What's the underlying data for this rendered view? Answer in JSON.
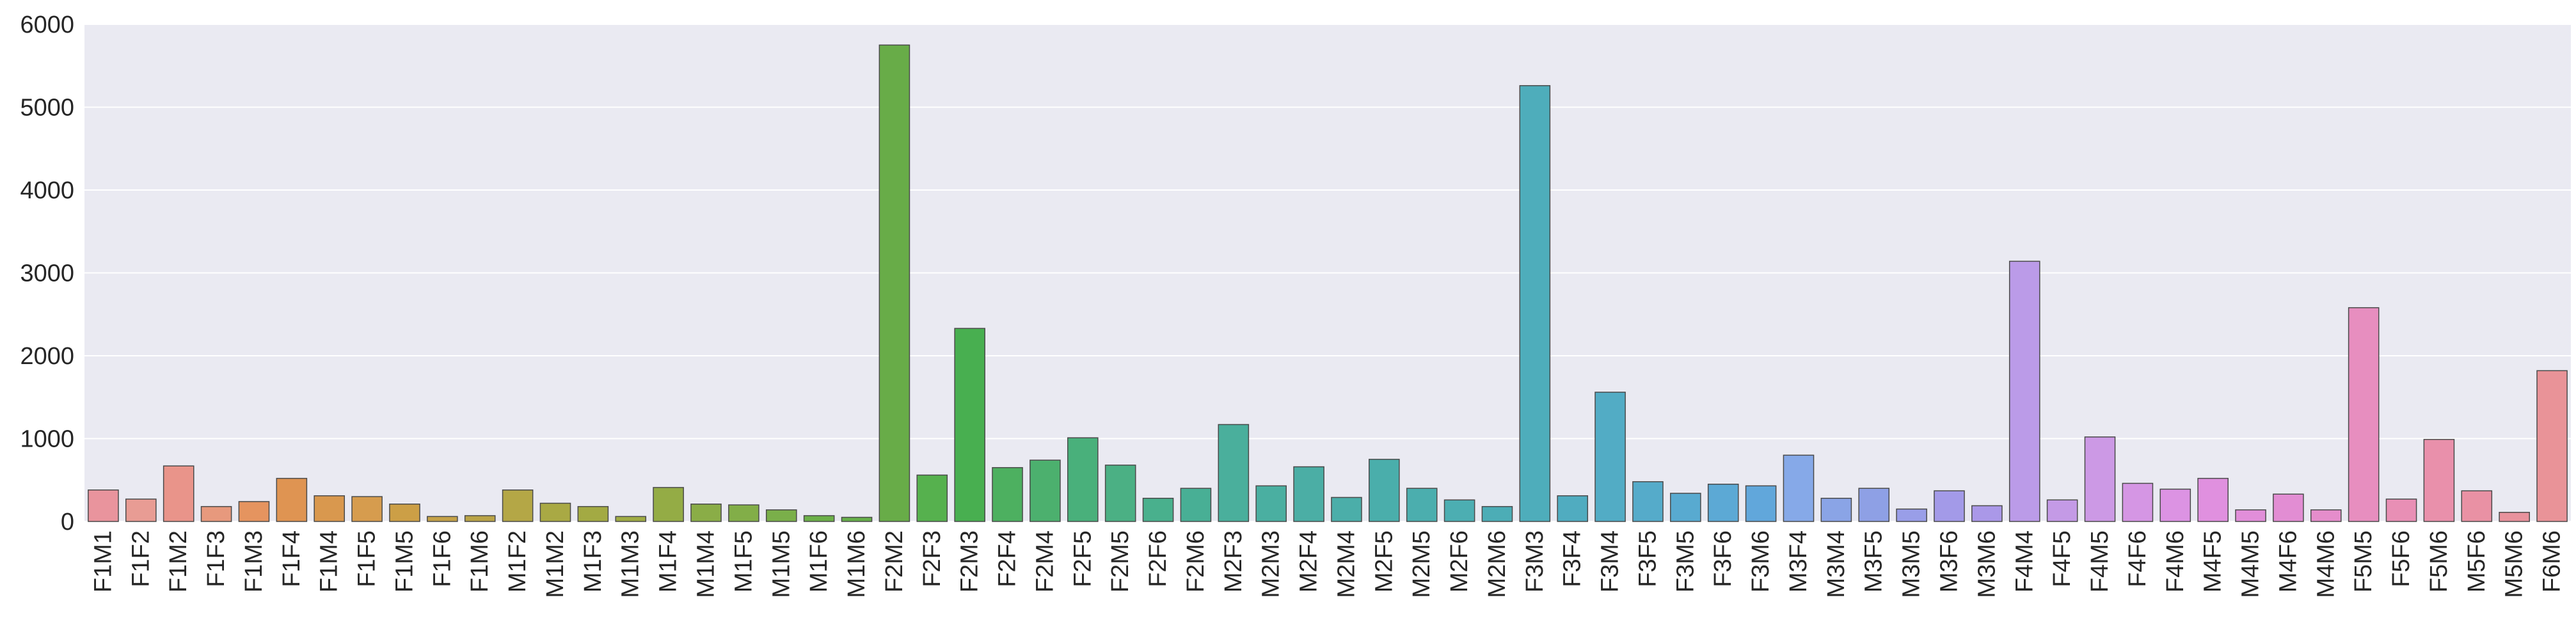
{
  "chart_data": {
    "type": "bar",
    "categories": [
      "F1M1",
      "F1F2",
      "F1M2",
      "F1F3",
      "F1M3",
      "F1F4",
      "F1M4",
      "F1F5",
      "F1M5",
      "F1F6",
      "F1M6",
      "M1F2",
      "M1M2",
      "M1F3",
      "M1M3",
      "M1F4",
      "M1M4",
      "M1F5",
      "M1M5",
      "M1F6",
      "M1M6",
      "F2M2",
      "F2F3",
      "F2M3",
      "F2F4",
      "F2M4",
      "F2F5",
      "F2M5",
      "F2F6",
      "F2M6",
      "M2F3",
      "M2M3",
      "M2F4",
      "M2M4",
      "M2F5",
      "M2M5",
      "M2F6",
      "M2M6",
      "F3M3",
      "F3F4",
      "F3M4",
      "F3F5",
      "F3M5",
      "F3F6",
      "F3M6",
      "M3F4",
      "M3M4",
      "M3F5",
      "M3M5",
      "M3F6",
      "M3M6",
      "F4M4",
      "F4F5",
      "F4M5",
      "F4F6",
      "F4M6",
      "M4F5",
      "M4M5",
      "M4F6",
      "M4M6",
      "F5M5",
      "F5F6",
      "F5M6",
      "M5F6",
      "M5M6",
      "F6M6"
    ],
    "values": [
      380,
      270,
      670,
      180,
      240,
      520,
      310,
      300,
      210,
      60,
      70,
      380,
      220,
      180,
      60,
      410,
      210,
      200,
      140,
      70,
      50,
      5750,
      560,
      2330,
      650,
      740,
      1010,
      680,
      280,
      400,
      1170,
      430,
      660,
      290,
      750,
      400,
      260,
      180,
      5260,
      310,
      1560,
      480,
      340,
      450,
      430,
      800,
      280,
      400,
      150,
      370,
      190,
      3140,
      260,
      1020,
      460,
      390,
      520,
      140,
      330,
      140,
      2580,
      270,
      990,
      370,
      110,
      1820
    ],
    "title": "",
    "xlabel": "",
    "ylabel": "",
    "ylim": [
      0,
      6000
    ],
    "yticks": [
      "0",
      "1000",
      "2000",
      "3000",
      "4000",
      "5000",
      "6000"
    ],
    "grid": "horizontal",
    "colors": [
      "#e9949d",
      "#e89c94",
      "#e9948a",
      "#e7997d",
      "#e5945f",
      "#df9452",
      "#d9984e",
      "#d69c4e",
      "#cc9f46",
      "#c4a148",
      "#baa447",
      "#b4a746",
      "#a9a944",
      "#a3aa43",
      "#9fab44",
      "#94ac45",
      "#8aad47",
      "#82ae48",
      "#7aaf4a",
      "#6cb049",
      "#66b04a",
      "#68ac48",
      "#56b14e",
      "#48af50",
      "#4db060",
      "#4cb06e",
      "#49b07b",
      "#4bb084",
      "#49b08d",
      "#48af95",
      "#4aaf9c",
      "#4aafa1",
      "#4baea5",
      "#4baea9",
      "#4aaeab",
      "#4baeae",
      "#4caeb2",
      "#4cadb6",
      "#4eadbb",
      "#50acc0",
      "#52acc5",
      "#55abca",
      "#58aad0",
      "#5ca9d5",
      "#61a7db",
      "#86a9e8",
      "#8aa4e6",
      "#8ea0e5",
      "#999ee8",
      "#a39ae8",
      "#aa98e8",
      "#bb9be8",
      "#c49ae6",
      "#cc99e5",
      "#d596e4",
      "#dc93e3",
      "#e090df",
      "#e18ed9",
      "#e28dd3",
      "#e58dcb",
      "#e78ebf",
      "#e88fb5",
      "#e990ab",
      "#e991a4",
      "#e9929d",
      "#e99398"
    ]
  }
}
